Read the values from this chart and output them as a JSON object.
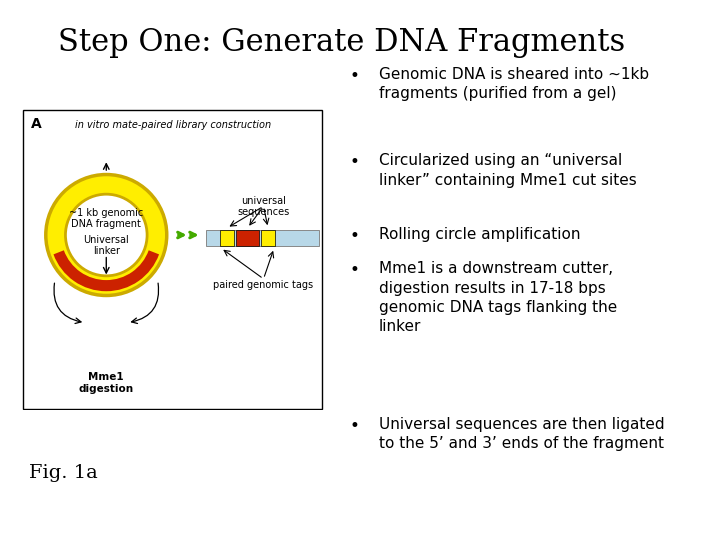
{
  "title": "Step One: Generate DNA Fragments",
  "title_fontsize": 22,
  "title_font": "serif",
  "bullet_points": [
    "Genomic DNA is sheared into ~1kb\nfragments (purified from a gel)",
    "Circularized using an “universal\nlinker” containing Mme1 cut sites",
    "Rolling circle amplification",
    "Mme1 is a downstream cutter,\ndigestion results in 17-18 bps\ngenomic DNA tags flanking the\nlinker",
    "Universal sequences are then ligated\nto the 5’ and 3’ ends of the fragment"
  ],
  "colors": {
    "background": "#ffffff",
    "circle_yellow": "#ffee00",
    "circle_edge": "#ccaa00",
    "linker_red": "#cc2200",
    "bar_blue": "#b8d8e8",
    "bar_yellow": "#ffee00",
    "bar_red": "#cc2200",
    "arrow_green": "#44aa00",
    "text": "#000000"
  },
  "fig_caption": "Fig. 1a",
  "fig_caption_fontsize": 14,
  "bullet_fontsize": 11,
  "subtitle_fontsize": 7,
  "diagram_label_fontsize": 7
}
